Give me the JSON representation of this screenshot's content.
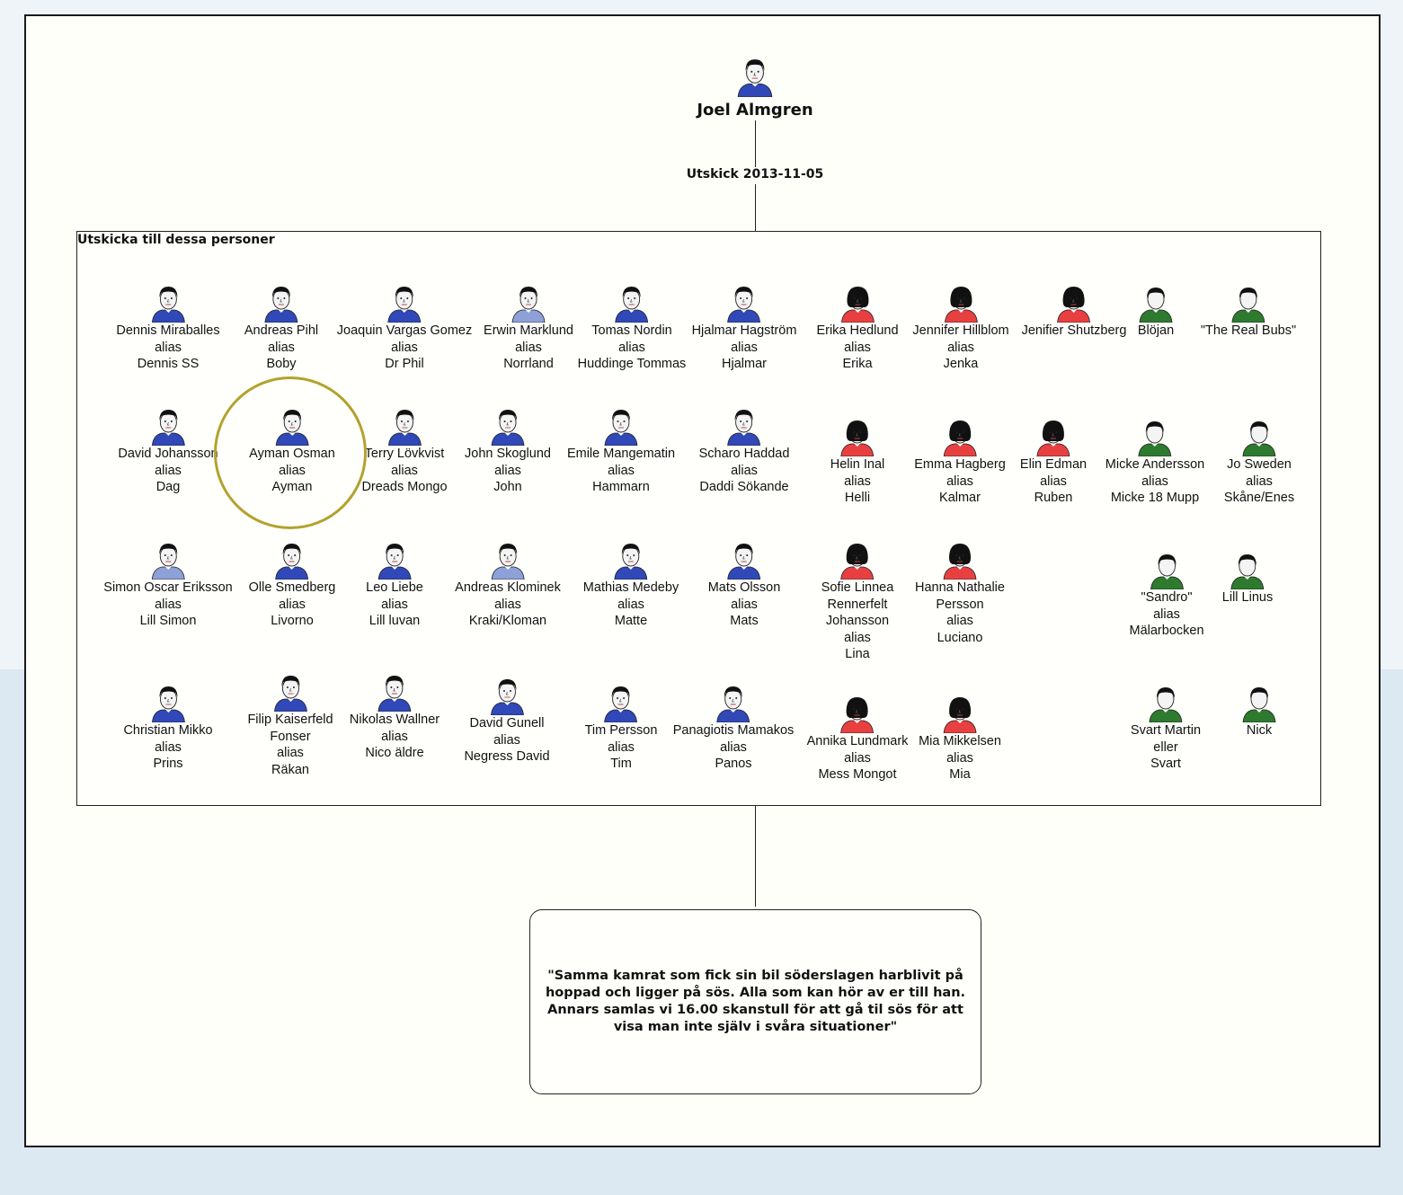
{
  "root": {
    "name": "Joel Almgren",
    "avatar": "male-blue",
    "event": "Utskick 2013-11-05"
  },
  "group": {
    "title": "Utskicka till dessa personer",
    "people": [
      {
        "lines": [
          "Dennis Miraballes",
          "alias",
          "Dennis SS"
        ],
        "avatar": "male-blue"
      },
      {
        "lines": [
          "Andreas Pihl",
          "alias",
          "Boby"
        ],
        "avatar": "male-blue"
      },
      {
        "lines": [
          "Joaquin Vargas Gomez",
          "alias",
          "Dr Phil"
        ],
        "avatar": "male-blue"
      },
      {
        "lines": [
          "Erwin Marklund",
          "alias",
          "Norrland"
        ],
        "avatar": "male-lightblue"
      },
      {
        "lines": [
          "Tomas Nordin",
          "alias",
          "Huddinge Tommas"
        ],
        "avatar": "male-blue"
      },
      {
        "lines": [
          "Hjalmar Hagström",
          "alias",
          "Hjalmar"
        ],
        "avatar": "male-blue"
      },
      {
        "lines": [
          "Erika Hedlund",
          "alias",
          "Erika"
        ],
        "avatar": "female-red"
      },
      {
        "lines": [
          "Jennifer Hillblom",
          "alias",
          "Jenka"
        ],
        "avatar": "female-red"
      },
      {
        "lines": [
          "Jenifier Shutzberg"
        ],
        "avatar": "female-red"
      },
      {
        "lines": [
          "Blöjan"
        ],
        "avatar": "unknown-green"
      },
      {
        "lines": [
          "\"The Real Bubs\""
        ],
        "avatar": "unknown-green"
      },
      {
        "lines": [
          "David Johansson",
          "alias",
          "Dag"
        ],
        "avatar": "male-blue"
      },
      {
        "lines": [
          "Ayman Osman",
          "alias",
          "Ayman"
        ],
        "avatar": "male-blue"
      },
      {
        "lines": [
          "Terry Lövkvist",
          "alias",
          "Dreads Mongo"
        ],
        "avatar": "male-blue"
      },
      {
        "lines": [
          "John Skoglund",
          "alias",
          "John"
        ],
        "avatar": "male-blue"
      },
      {
        "lines": [
          "Emile Mangematin",
          "alias",
          "Hammarn"
        ],
        "avatar": "male-blue"
      },
      {
        "lines": [
          "Scharo Haddad",
          "alias",
          "Daddi Sökande"
        ],
        "avatar": "male-blue"
      },
      {
        "lines": [
          "Helin Inal",
          "alias",
          "Helli"
        ],
        "avatar": "female-red"
      },
      {
        "lines": [
          "Emma Hagberg",
          "alias",
          "Kalmar"
        ],
        "avatar": "female-red"
      },
      {
        "lines": [
          "Elin Edman",
          "alias",
          "Ruben"
        ],
        "avatar": "female-red"
      },
      {
        "lines": [
          "Micke Andersson",
          "alias",
          "Micke 18 Mupp"
        ],
        "avatar": "unknown-green"
      },
      {
        "lines": [
          "Jo Sweden",
          "alias",
          "Skåne/Enes"
        ],
        "avatar": "unknown-green"
      },
      {
        "lines": [
          "Simon Oscar Eriksson",
          "alias",
          "Lill Simon"
        ],
        "avatar": "male-lightblue"
      },
      {
        "lines": [
          "Olle Smedberg",
          "alias",
          "Livorno"
        ],
        "avatar": "male-blue"
      },
      {
        "lines": [
          "Leo Liebe",
          "alias",
          "Lill luvan"
        ],
        "avatar": "male-blue"
      },
      {
        "lines": [
          "Andreas Klominek",
          "alias",
          "Kraki/Kloman"
        ],
        "avatar": "male-lightblue"
      },
      {
        "lines": [
          "Mathias Medeby",
          "alias",
          "Matte"
        ],
        "avatar": "male-blue"
      },
      {
        "lines": [
          "Mats Olsson",
          "alias",
          "Mats"
        ],
        "avatar": "male-blue"
      },
      {
        "lines": [
          "Sofie Linnea",
          "Rennerfelt",
          "Johansson",
          "alias",
          "Lina"
        ],
        "avatar": "female-red"
      },
      {
        "lines": [
          "Hanna Nathalie",
          "Persson",
          "alias",
          "Luciano"
        ],
        "avatar": "female-red"
      },
      {
        "lines": [
          "\"Sandro\"",
          "alias",
          "Mälarbocken"
        ],
        "avatar": "unknown-green"
      },
      {
        "lines": [
          "Lill Linus"
        ],
        "avatar": "unknown-green"
      },
      {
        "lines": [
          "Christian Mikko",
          "alias",
          "Prins"
        ],
        "avatar": "male-blue"
      },
      {
        "lines": [
          "Filip Kaiserfeld",
          "Fonser",
          "alias",
          "Räkan"
        ],
        "avatar": "male-blue"
      },
      {
        "lines": [
          "Nikolas Wallner",
          "alias",
          "Nico äldre"
        ],
        "avatar": "male-blue"
      },
      {
        "lines": [
          "David Gunell",
          "alias",
          "Negress David"
        ],
        "avatar": "male-blue"
      },
      {
        "lines": [
          "Tim Persson",
          "alias",
          "Tim"
        ],
        "avatar": "male-blue"
      },
      {
        "lines": [
          "Panagiotis Mamakos",
          "alias",
          "Panos"
        ],
        "avatar": "male-blue"
      },
      {
        "lines": [
          "Annika Lundmark",
          "alias",
          "Mess Mongot"
        ],
        "avatar": "female-red"
      },
      {
        "lines": [
          "Mia Mikkelsen",
          "alias",
          "Mia"
        ],
        "avatar": "female-red"
      },
      {
        "lines": [
          "Svart Martin",
          "eller",
          "Svart"
        ],
        "avatar": "unknown-green"
      },
      {
        "lines": [
          "Nick"
        ],
        "avatar": "unknown-green"
      }
    ]
  },
  "note": {
    "text": "\"Samma kamrat som fick sin bil söderslagen harblivit på hoppad och ligger på sös. Alla som kan hör av er till han. Annars samlas vi 16.00 skanstull för att gå til sös för att visa man inte själv i svåra situationer\""
  },
  "colors": {
    "male-blue": "#3048b8",
    "male-lightblue": "#8ea0d8",
    "female-red": "#e84040",
    "unknown-green": "#2e7a2e",
    "highlight": "#b3a22d"
  }
}
